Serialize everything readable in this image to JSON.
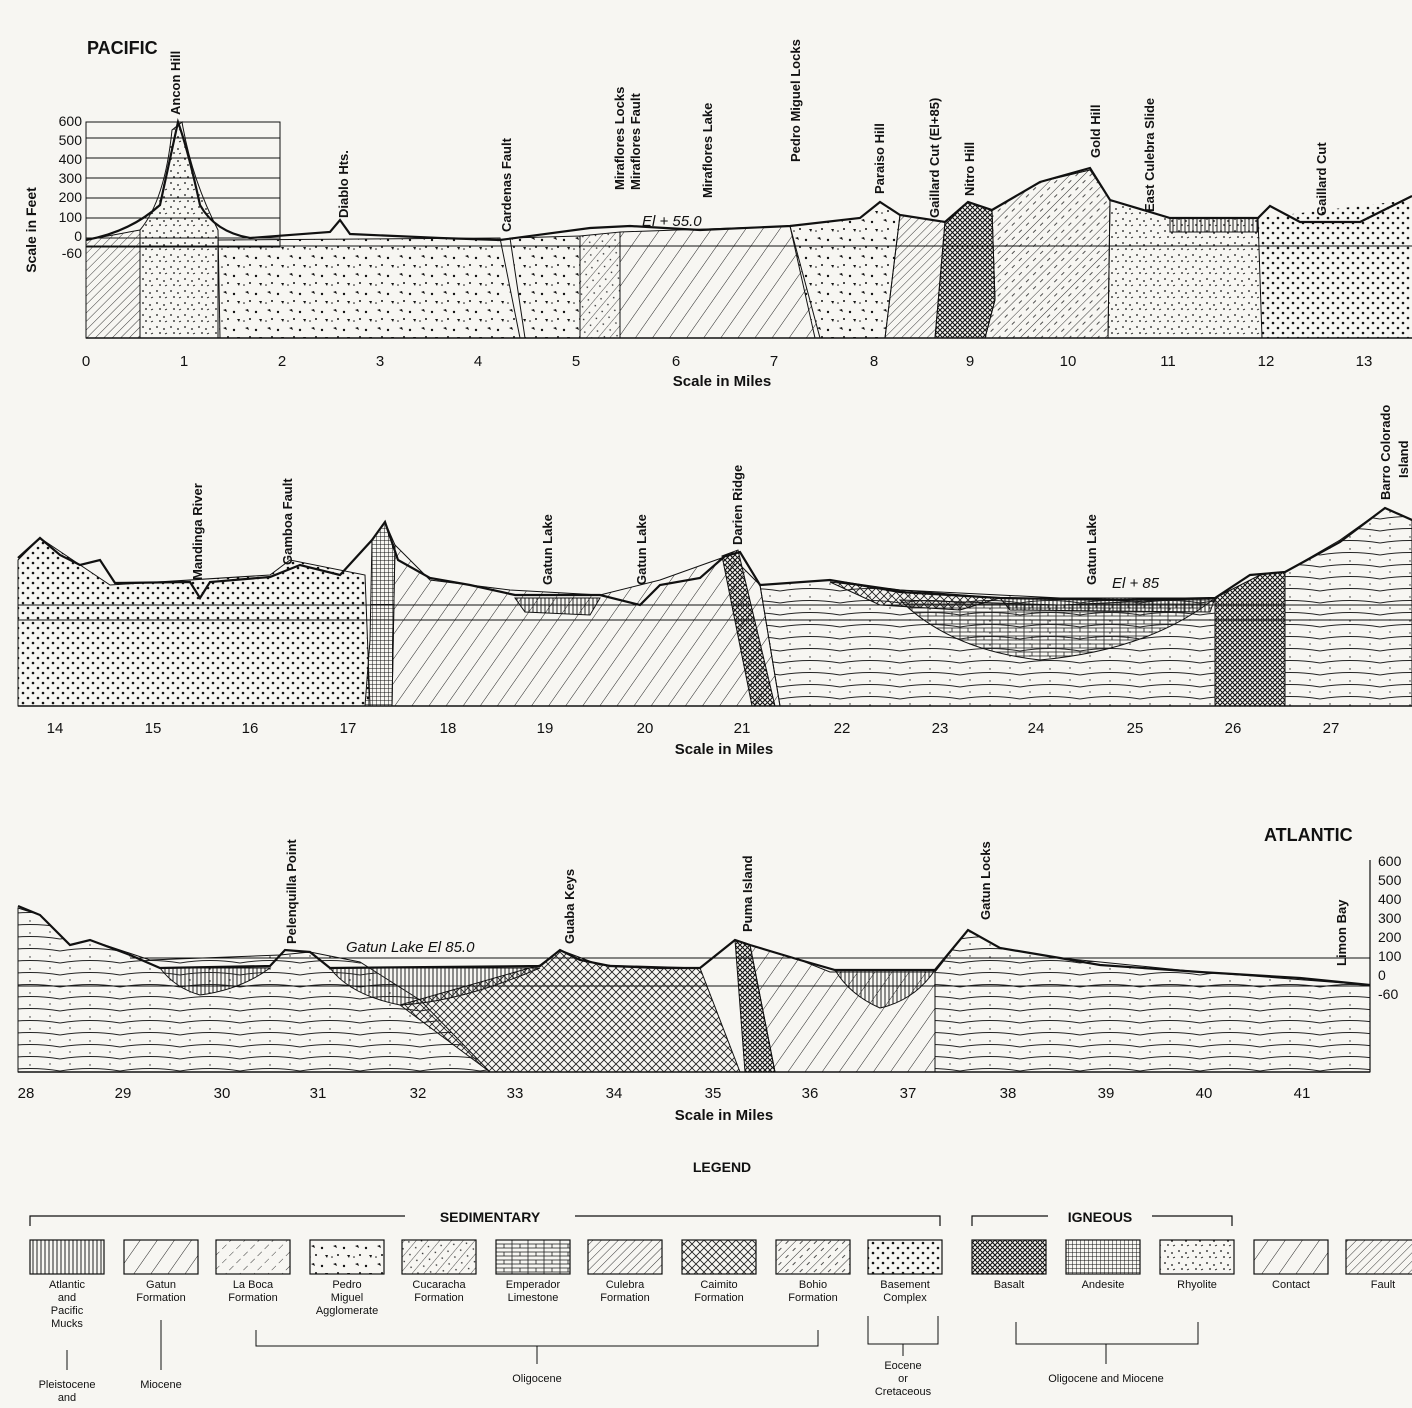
{
  "titles": {
    "pacific": "PACIFIC",
    "atlantic": "ATLANTIC",
    "legend": "LEGEND"
  },
  "scale_miles": "Scale in Miles",
  "scale_feet": "Scale in Feet",
  "vscale_left": [
    "600",
    "500",
    "400",
    "300",
    "200",
    "100",
    "0",
    "-60"
  ],
  "vscale_right": [
    "600",
    "500",
    "400",
    "300",
    "200",
    "100",
    "0",
    "-60"
  ],
  "elevations": {
    "p1": "El + 55.0",
    "p2": "El + 85",
    "p3": "Gatun Lake El 85.0"
  },
  "panel1": {
    "ticks": [
      "0",
      "1",
      "2",
      "3",
      "4",
      "5",
      "6",
      "7",
      "8",
      "9",
      "10",
      "11",
      "12",
      "13"
    ],
    "features": [
      "Ancon Hill",
      "Diablo Hts.",
      "Cardenas Fault",
      "Miraflores Locks",
      "Miraflores Fault",
      "Miraflores Lake",
      "Pedro Miguel Locks",
      "Paraiso Hill",
      "Gaillard Cut (El+85)",
      "Nitro Hill",
      "Gold Hill",
      "East Culebra Slide",
      "Gaillard Cut"
    ]
  },
  "panel2": {
    "ticks": [
      "14",
      "15",
      "16",
      "17",
      "18",
      "19",
      "20",
      "21",
      "22",
      "23",
      "24",
      "25",
      "26",
      "27"
    ],
    "features": [
      "Mandinga River",
      "Gamboa Fault",
      "Gatun Lake",
      "Gatun Lake",
      "Darien Ridge",
      "Gatun Lake",
      "Barro Colorado",
      "Island"
    ]
  },
  "panel3": {
    "ticks": [
      "28",
      "29",
      "30",
      "31",
      "32",
      "33",
      "34",
      "35",
      "36",
      "37",
      "38",
      "39",
      "40",
      "41"
    ],
    "features": [
      "Pelenquilla Point",
      "Guaba Keys",
      "Puma Island",
      "Gatun Locks",
      "Limon Bay"
    ]
  },
  "legend": {
    "sedimentary": "SEDIMENTARY",
    "igneous": "IGNEOUS",
    "items": [
      {
        "l1": "Atlantic",
        "l2": "and",
        "l3": "Pacific",
        "l4": "Mucks",
        "pattern": "vlines"
      },
      {
        "l1": "Gatun",
        "l2": "Formation",
        "pattern": "diag-sparse"
      },
      {
        "l1": "La Boca",
        "l2": "Formation",
        "pattern": "diag-dash"
      },
      {
        "l1": "Pedro",
        "l2": "Miguel",
        "l3": "Agglomerate",
        "pattern": "blobs"
      },
      {
        "l1": "Cucaracha",
        "l2": "Formation",
        "pattern": "diag-dots"
      },
      {
        "l1": "Emperador",
        "l2": "Limestone",
        "pattern": "brick"
      },
      {
        "l1": "Culebra",
        "l2": "Formation",
        "pattern": "diag-dense"
      },
      {
        "l1": "Caimito",
        "l2": "Formation",
        "pattern": "crosshatch"
      },
      {
        "l1": "Bohio",
        "l2": "Formation",
        "pattern": "diag-mixed"
      },
      {
        "l1": "Basement",
        "l2": "Complex",
        "pattern": "dots"
      },
      {
        "l1": "Basalt",
        "pattern": "dense-cross"
      },
      {
        "l1": "Andesite",
        "pattern": "grid"
      },
      {
        "l1": "Rhyolite",
        "pattern": "specks"
      },
      {
        "l1": "Contact",
        "pattern": "contact"
      },
      {
        "l1": "Fault",
        "pattern": "fault"
      }
    ],
    "ages": {
      "pleistocene": "Pleistocene",
      "pleistocene2": "and",
      "miocene": "Miocene",
      "oligocene": "Oligocene",
      "eocene1": "Eocene",
      "eocene2": "or",
      "eocene3": "Cretaceous",
      "olig_mio": "Oligocene and Miocene"
    }
  }
}
